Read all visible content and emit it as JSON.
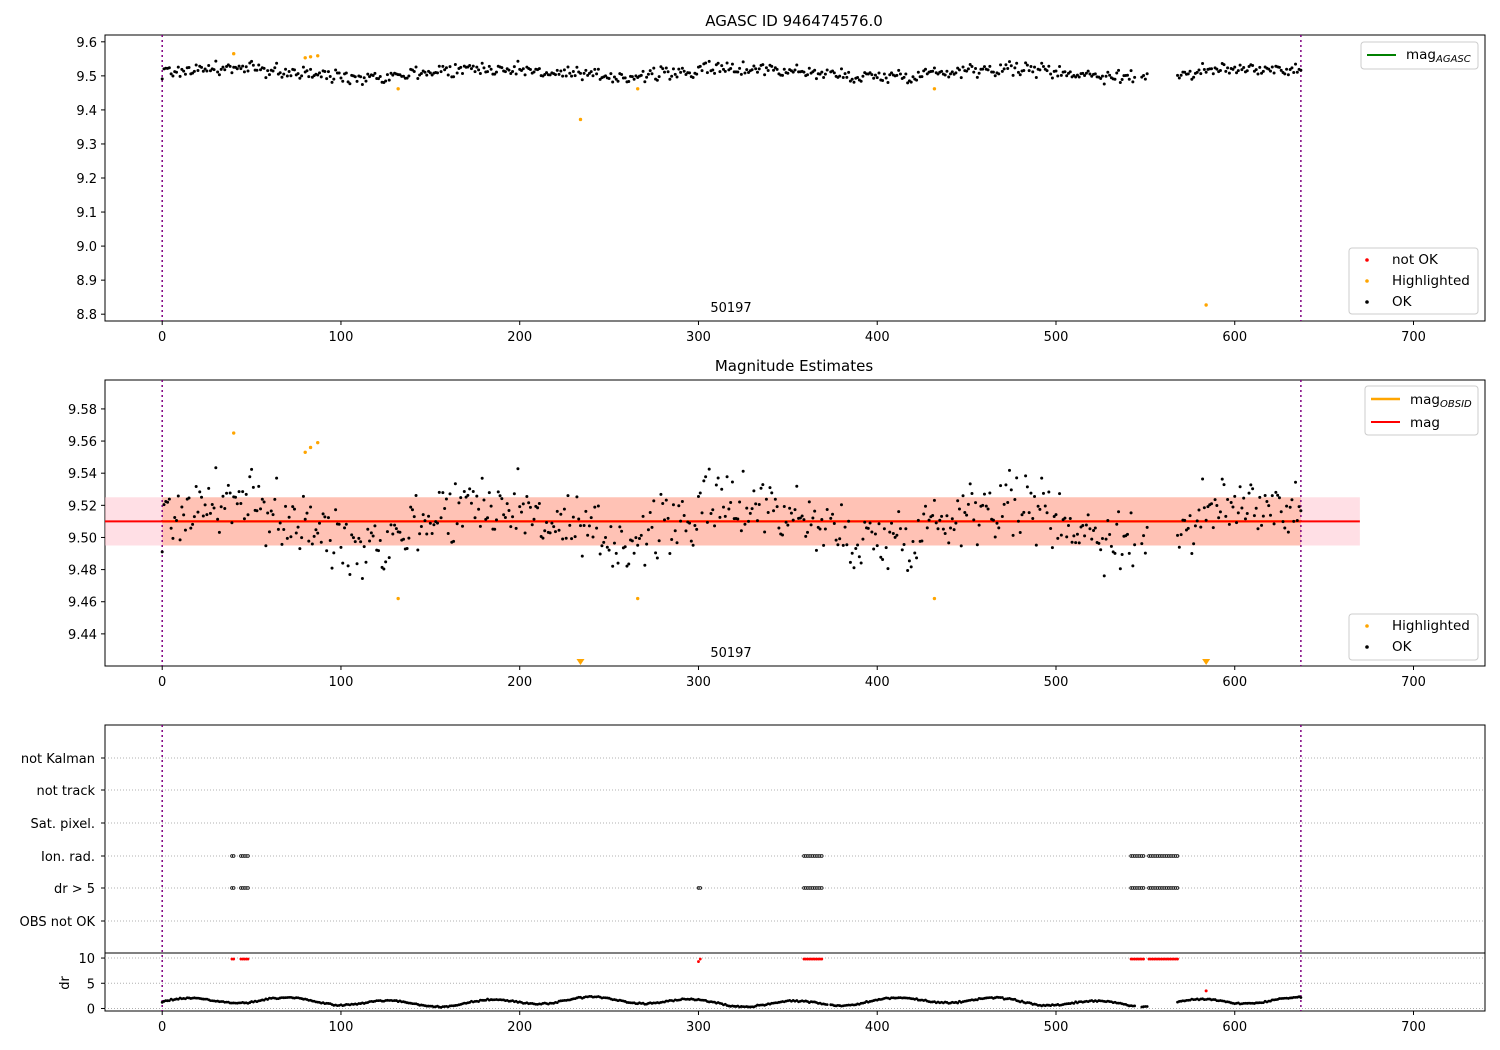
{
  "panel1": {
    "title": "AGASC ID 946474576.0",
    "obsid_label": "50197",
    "xticks": [
      0,
      100,
      200,
      300,
      400,
      500,
      600,
      700
    ],
    "yticks": [
      "9.6",
      "9.5",
      "9.4",
      "9.3",
      "9.2",
      "9.1",
      "9.0",
      "8.9",
      "8.8"
    ],
    "legend_line": {
      "label": "mag",
      "subscript": "AGASC",
      "color": "#008000"
    },
    "legend_points": [
      {
        "label": "not OK",
        "color": "#ff0000"
      },
      {
        "label": "Highlighted",
        "color": "#ffa500"
      },
      {
        "label": "OK",
        "color": "#000000"
      }
    ]
  },
  "panel2": {
    "title": "Magnitude Estimates",
    "obsid_label": "50197",
    "xticks": [
      0,
      100,
      200,
      300,
      400,
      500,
      600,
      700
    ],
    "yticks": [
      "9.58",
      "9.56",
      "9.54",
      "9.52",
      "9.50",
      "9.48",
      "9.46",
      "9.44"
    ],
    "legend_lines": [
      {
        "label": "mag",
        "subscript": "OBSID",
        "color": "#ffa500"
      },
      {
        "label": "mag",
        "subscript": "",
        "color": "#ff0000"
      }
    ],
    "legend_points": [
      {
        "label": "Highlighted",
        "color": "#ffa500"
      },
      {
        "label": "OK",
        "color": "#000000"
      }
    ]
  },
  "panel3": {
    "flag_labels": [
      "not Kalman",
      "not track",
      "Sat. pixel.",
      "Ion. rad.",
      "dr > 5",
      "OBS not OK"
    ],
    "dr_yticks": [
      "10",
      "5",
      "0"
    ],
    "dr_ylabel": "dr",
    "xticks": [
      0,
      100,
      200,
      300,
      400,
      500,
      600,
      700
    ]
  },
  "chart_data": [
    {
      "type": "scatter",
      "title": "AGASC ID 946474576.0",
      "xlim": [
        -32,
        740
      ],
      "ylim": [
        8.78,
        9.62
      ],
      "obs_range": [
        0,
        637
      ],
      "mag_agasc": 9.51,
      "series": [
        {
          "name": "OK",
          "color": "#000000",
          "trend": 9.51,
          "noise": 0.016,
          "n": 637
        },
        {
          "name": "Highlighted",
          "color": "#ffa500",
          "x": [
            40,
            80,
            83,
            87,
            132,
            234,
            266,
            432,
            584
          ],
          "y": [
            9.565,
            9.553,
            9.556,
            9.559,
            9.462,
            9.372,
            9.462,
            9.462,
            8.827
          ]
        }
      ],
      "gaps": [
        [
          372,
          374
        ],
        [
          544,
          548
        ],
        [
          551,
          568
        ]
      ],
      "annotation": "50197"
    },
    {
      "type": "scatter",
      "title": "Magnitude Estimates",
      "xlim": [
        -32,
        740
      ],
      "ylim": [
        9.42,
        9.598
      ],
      "mag": 9.51,
      "mag_band": [
        9.495,
        9.525
      ],
      "mag_obsid_band": [
        9.495,
        9.525
      ],
      "series": [
        {
          "name": "OK",
          "color": "#000000",
          "trend": 9.51,
          "noise": 0.016,
          "n": 637
        },
        {
          "name": "Highlighted",
          "color": "#ffa500",
          "x": [
            40,
            80,
            83,
            87,
            132,
            266,
            432
          ],
          "y": [
            9.565,
            9.553,
            9.556,
            9.559,
            9.462,
            9.462,
            9.462
          ]
        },
        {
          "name": "Highlighted (off-scale)",
          "color": "#ffa500",
          "x": [
            234,
            584
          ],
          "y": [
            9.42,
            9.42
          ]
        }
      ],
      "annotation": "50197"
    },
    {
      "type": "scatter",
      "title": "",
      "xlim": [
        -32,
        740
      ],
      "flags": {
        "Ion. rad.": [
          [
            39,
            40
          ],
          [
            44,
            48
          ],
          [
            359,
            361
          ],
          [
            362,
            369
          ],
          [
            542,
            549
          ],
          [
            552,
            568
          ]
        ],
        "dr > 5": [
          [
            39,
            40
          ],
          [
            44,
            48
          ],
          [
            300,
            301
          ],
          [
            359,
            361
          ],
          [
            362,
            369
          ],
          [
            542,
            549
          ],
          [
            552,
            568
          ]
        ]
      },
      "dr": {
        "ylim": [
          -0.5,
          11
        ],
        "outliers": [
          [
            39,
            9.8
          ],
          [
            44,
            9.8
          ],
          [
            45,
            9.8
          ],
          [
            46,
            9.8
          ],
          [
            47,
            9.8
          ],
          [
            300,
            9.3
          ],
          [
            360,
            9.8
          ],
          [
            584,
            3.5
          ]
        ],
        "trend": 1.3
      }
    }
  ]
}
